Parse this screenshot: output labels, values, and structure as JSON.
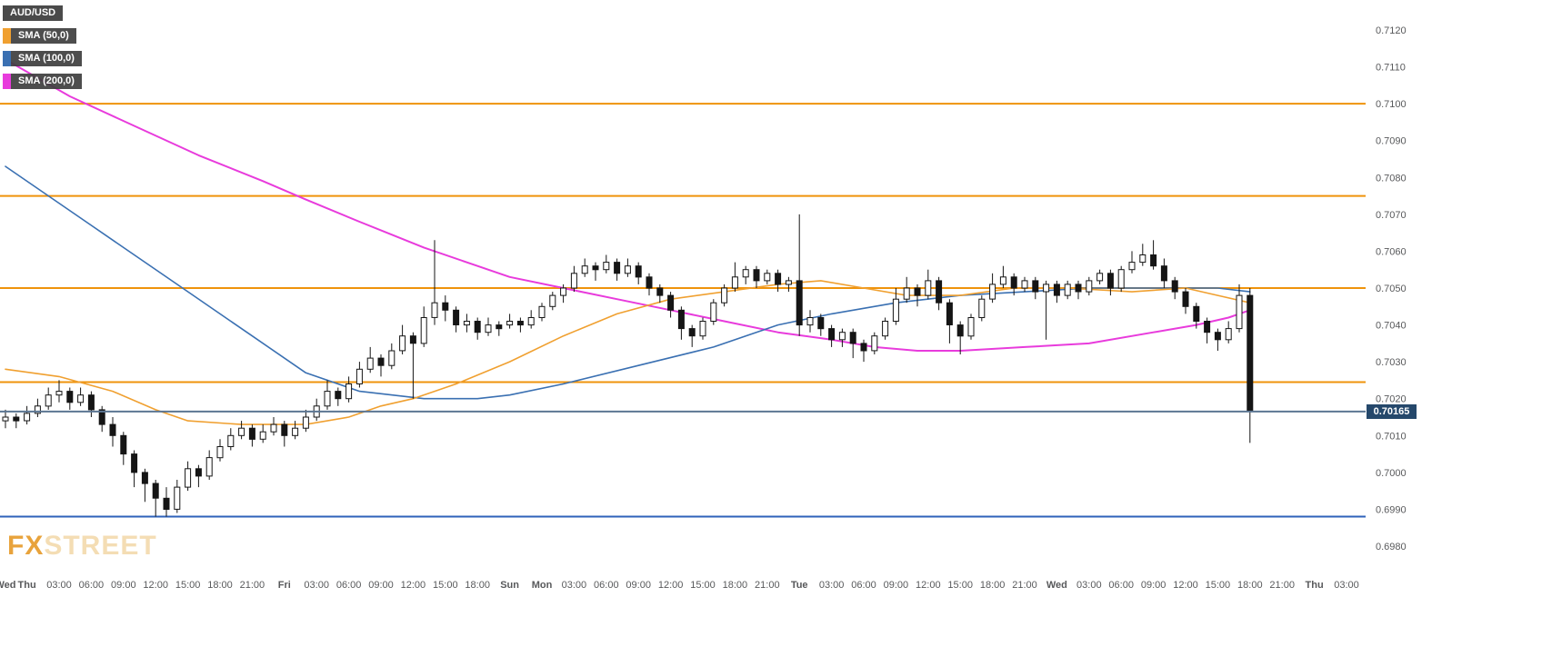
{
  "window": {
    "background": "#ffffff"
  },
  "legend": {
    "symbol": {
      "label": "AUD/USD",
      "bg": "#4a4a4a",
      "text_color": "#ffffff"
    },
    "indicators": [
      {
        "label": "SMA (50,0)",
        "accent": "#f0a030"
      },
      {
        "label": "SMA (100,0)",
        "accent": "#3a70b2"
      },
      {
        "label": "SMA (200,0)",
        "accent": "#e83bdc"
      }
    ]
  },
  "logo": {
    "part1": "FX",
    "part2": "STREET",
    "part1_color": "#e8a33c",
    "part2_color": "#f4ddb4"
  },
  "chart_data": {
    "type": "candlestick",
    "pair": "AUD/USD",
    "interval": "1h",
    "price_encoding": {
      "base": 0.69,
      "scale": 0.0001,
      "note": "encoded value v -> price = base + v*scale (e.g. 115 = 0.7015)"
    },
    "y_axis": {
      "min": 0.698,
      "max": 0.712,
      "tick_step": 0.001,
      "tick_labels": [
        "0.7120",
        "0.7110",
        "0.7100",
        "0.7090",
        "0.7080",
        "0.7070",
        "0.7060",
        "0.7050",
        "0.7040",
        "0.7030",
        "0.7020",
        "0.7010",
        "0.7000",
        "0.6990",
        "0.6980"
      ],
      "label_color": "#58595b"
    },
    "x_axis": {
      "slot_hours": 1,
      "label_color": "#58595b",
      "labels": [
        {
          "text": "Wed",
          "slot": 0,
          "day": true
        },
        {
          "text": "Thu",
          "slot": 2,
          "day": true
        },
        {
          "text": "03:00",
          "slot": 5
        },
        {
          "text": "06:00",
          "slot": 8
        },
        {
          "text": "09:00",
          "slot": 11
        },
        {
          "text": "12:00",
          "slot": 14
        },
        {
          "text": "15:00",
          "slot": 17
        },
        {
          "text": "18:00",
          "slot": 20
        },
        {
          "text": "21:00",
          "slot": 23
        },
        {
          "text": "Fri",
          "slot": 26,
          "day": true
        },
        {
          "text": "03:00",
          "slot": 29
        },
        {
          "text": "06:00",
          "slot": 32
        },
        {
          "text": "09:00",
          "slot": 35
        },
        {
          "text": "12:00",
          "slot": 38
        },
        {
          "text": "15:00",
          "slot": 41
        },
        {
          "text": "18:00",
          "slot": 44
        },
        {
          "text": "Sun",
          "slot": 47,
          "day": true
        },
        {
          "text": "Mon",
          "slot": 50,
          "day": true
        },
        {
          "text": "03:00",
          "slot": 53
        },
        {
          "text": "06:00",
          "slot": 56
        },
        {
          "text": "09:00",
          "slot": 59
        },
        {
          "text": "12:00",
          "slot": 62
        },
        {
          "text": "15:00",
          "slot": 65
        },
        {
          "text": "18:00",
          "slot": 68
        },
        {
          "text": "21:00",
          "slot": 71
        },
        {
          "text": "Tue",
          "slot": 74,
          "day": true
        },
        {
          "text": "03:00",
          "slot": 77
        },
        {
          "text": "06:00",
          "slot": 80
        },
        {
          "text": "09:00",
          "slot": 83
        },
        {
          "text": "12:00",
          "slot": 86
        },
        {
          "text": "15:00",
          "slot": 89
        },
        {
          "text": "18:00",
          "slot": 92
        },
        {
          "text": "21:00",
          "slot": 95
        },
        {
          "text": "Wed",
          "slot": 98,
          "day": true
        },
        {
          "text": "03:00",
          "slot": 101
        },
        {
          "text": "06:00",
          "slot": 104
        },
        {
          "text": "09:00",
          "slot": 107
        },
        {
          "text": "12:00",
          "slot": 110
        },
        {
          "text": "15:00",
          "slot": 113
        },
        {
          "text": "18:00",
          "slot": 116
        },
        {
          "text": "21:00",
          "slot": 119
        },
        {
          "text": "Thu",
          "slot": 122,
          "day": true
        },
        {
          "text": "03:00",
          "slot": 125
        }
      ]
    },
    "horizontal_levels": [
      {
        "price": 0.71,
        "color": "#ef930b",
        "width": 2
      },
      {
        "price": 0.7075,
        "color": "#ef930b",
        "width": 2
      },
      {
        "price": 0.705,
        "color": "#ef930b",
        "width": 2
      },
      {
        "price": 0.70245,
        "color": "#ef930b",
        "width": 2
      },
      {
        "price": 0.6988,
        "color": "#2e62ba",
        "width": 2
      }
    ],
    "current_price": {
      "value": 0.70165,
      "label": "0.70165",
      "line_color": "#5c7693",
      "badge_bg": "#25486b",
      "badge_text_color": "#ffffff"
    },
    "sma": [
      {
        "name": "SMA (50,0)",
        "period": 50,
        "color": "#f0a030",
        "width": 1.6,
        "points": [
          [
            0,
            128
          ],
          [
            5,
            126
          ],
          [
            10,
            122
          ],
          [
            14,
            117
          ],
          [
            17,
            114
          ],
          [
            22,
            113
          ],
          [
            28,
            113
          ],
          [
            32,
            115
          ],
          [
            35,
            118
          ],
          [
            38,
            120
          ],
          [
            42,
            124
          ],
          [
            47,
            130
          ],
          [
            52,
            137
          ],
          [
            57,
            143
          ],
          [
            62,
            147
          ],
          [
            67,
            149
          ],
          [
            72,
            151
          ],
          [
            76,
            152
          ],
          [
            80,
            150
          ],
          [
            84,
            148
          ],
          [
            89,
            148
          ],
          [
            94,
            150
          ],
          [
            99,
            150
          ],
          [
            105,
            149
          ],
          [
            110,
            150
          ],
          [
            113,
            148
          ],
          [
            116,
            146
          ]
        ]
      },
      {
        "name": "SMA (100,0)",
        "period": 100,
        "color": "#3a70b2",
        "width": 1.6,
        "points": [
          [
            0,
            183
          ],
          [
            8,
            167
          ],
          [
            16,
            151
          ],
          [
            23,
            137
          ],
          [
            28,
            127
          ],
          [
            33,
            122
          ],
          [
            39,
            120
          ],
          [
            44,
            120
          ],
          [
            47,
            121
          ],
          [
            52,
            124
          ],
          [
            59,
            129
          ],
          [
            66,
            134
          ],
          [
            72,
            140
          ],
          [
            77,
            143
          ],
          [
            83,
            146
          ],
          [
            89,
            148
          ],
          [
            95,
            149
          ],
          [
            101,
            150
          ],
          [
            107,
            150
          ],
          [
            113,
            150
          ],
          [
            116,
            149
          ]
        ]
      },
      {
        "name": "SMA (200,0)",
        "period": 200,
        "color": "#e83bdc",
        "width": 2,
        "points": [
          [
            0,
            212
          ],
          [
            6,
            202
          ],
          [
            12,
            194
          ],
          [
            18,
            186
          ],
          [
            24,
            179
          ],
          [
            28,
            174
          ],
          [
            33,
            168
          ],
          [
            39,
            161
          ],
          [
            44,
            156
          ],
          [
            47,
            153
          ],
          [
            52,
            150
          ],
          [
            57,
            147
          ],
          [
            62,
            144
          ],
          [
            67,
            141
          ],
          [
            72,
            138
          ],
          [
            77,
            136
          ],
          [
            81,
            134
          ],
          [
            85,
            133
          ],
          [
            89,
            133
          ],
          [
            95,
            134
          ],
          [
            101,
            135
          ],
          [
            107,
            138
          ],
          [
            111,
            140
          ],
          [
            114,
            142
          ],
          [
            116,
            144
          ]
        ]
      }
    ],
    "candles": [
      [
        114,
        117,
        112,
        115
      ],
      [
        115,
        116,
        112,
        114
      ],
      [
        114,
        118,
        113,
        116
      ],
      [
        116,
        120,
        115,
        118
      ],
      [
        118,
        123,
        117,
        121
      ],
      [
        121,
        125,
        119,
        122
      ],
      [
        122,
        123,
        117,
        119
      ],
      [
        119,
        123,
        118,
        121
      ],
      [
        121,
        122,
        115,
        117
      ],
      [
        117,
        118,
        111,
        113
      ],
      [
        113,
        115,
        107,
        110
      ],
      [
        110,
        111,
        102,
        105
      ],
      [
        105,
        106,
        96,
        100
      ],
      [
        100,
        101,
        92,
        97
      ],
      [
        97,
        98,
        88,
        93
      ],
      [
        93,
        96,
        88,
        90
      ],
      [
        90,
        98,
        89,
        96
      ],
      [
        96,
        103,
        95,
        101
      ],
      [
        101,
        102,
        96,
        99
      ],
      [
        99,
        106,
        98,
        104
      ],
      [
        104,
        109,
        103,
        107
      ],
      [
        107,
        112,
        106,
        110
      ],
      [
        110,
        114,
        109,
        112
      ],
      [
        112,
        113,
        107,
        109
      ],
      [
        109,
        113,
        108,
        111
      ],
      [
        111,
        115,
        110,
        113
      ],
      [
        113,
        114,
        107,
        110
      ],
      [
        110,
        114,
        109,
        112
      ],
      [
        112,
        117,
        111,
        115
      ],
      [
        115,
        120,
        114,
        118
      ],
      [
        118,
        125,
        117,
        122
      ],
      [
        122,
        123,
        118,
        120
      ],
      [
        120,
        126,
        119,
        124
      ],
      [
        124,
        130,
        123,
        128
      ],
      [
        128,
        134,
        127,
        131
      ],
      [
        131,
        132,
        126,
        129
      ],
      [
        129,
        135,
        128,
        133
      ],
      [
        133,
        140,
        132,
        137
      ],
      [
        137,
        138,
        120,
        135
      ],
      [
        135,
        145,
        134,
        142
      ],
      [
        142,
        163,
        140,
        146
      ],
      [
        146,
        148,
        141,
        144
      ],
      [
        144,
        145,
        138,
        140
      ],
      [
        140,
        143,
        138,
        141
      ],
      [
        141,
        142,
        136,
        138
      ],
      [
        138,
        142,
        137,
        140
      ],
      [
        140,
        141,
        137,
        139
      ],
      [
        140,
        143,
        139,
        141
      ],
      [
        141,
        142,
        138,
        140
      ],
      [
        140,
        144,
        139,
        142
      ],
      [
        142,
        146,
        141,
        145
      ],
      [
        145,
        149,
        144,
        148
      ],
      [
        148,
        151,
        146,
        150
      ],
      [
        150,
        156,
        149,
        154
      ],
      [
        154,
        158,
        153,
        156
      ],
      [
        156,
        157,
        152,
        155
      ],
      [
        155,
        159,
        154,
        157
      ],
      [
        157,
        158,
        152,
        154
      ],
      [
        154,
        158,
        153,
        156
      ],
      [
        156,
        157,
        151,
        153
      ],
      [
        153,
        154,
        148,
        150
      ],
      [
        150,
        151,
        146,
        148
      ],
      [
        148,
        149,
        142,
        144
      ],
      [
        144,
        145,
        136,
        139
      ],
      [
        139,
        140,
        134,
        137
      ],
      [
        137,
        142,
        136,
        141
      ],
      [
        141,
        147,
        140,
        146
      ],
      [
        146,
        151,
        145,
        150
      ],
      [
        150,
        157,
        149,
        153
      ],
      [
        153,
        156,
        151,
        155
      ],
      [
        155,
        156,
        150,
        152
      ],
      [
        152,
        155,
        151,
        154
      ],
      [
        154,
        155,
        149,
        151
      ],
      [
        151,
        153,
        149,
        152
      ],
      [
        152,
        170,
        137,
        140
      ],
      [
        140,
        144,
        138,
        142
      ],
      [
        142,
        143,
        137,
        139
      ],
      [
        139,
        140,
        134,
        136
      ],
      [
        136,
        139,
        134,
        138
      ],
      [
        138,
        139,
        131,
        135
      ],
      [
        135,
        136,
        130,
        133
      ],
      [
        133,
        138,
        132,
        137
      ],
      [
        137,
        142,
        136,
        141
      ],
      [
        141,
        150,
        140,
        147
      ],
      [
        147,
        153,
        146,
        150
      ],
      [
        150,
        151,
        145,
        148
      ],
      [
        148,
        155,
        147,
        152
      ],
      [
        152,
        153,
        144,
        146
      ],
      [
        146,
        147,
        135,
        140
      ],
      [
        140,
        141,
        132,
        137
      ],
      [
        137,
        143,
        136,
        142
      ],
      [
        142,
        148,
        141,
        147
      ],
      [
        147,
        154,
        146,
        151
      ],
      [
        151,
        156,
        150,
        153
      ],
      [
        153,
        154,
        148,
        150
      ],
      [
        150,
        153,
        149,
        152
      ],
      [
        152,
        153,
        147,
        149
      ],
      [
        149,
        152,
        136,
        151
      ],
      [
        151,
        152,
        146,
        148
      ],
      [
        148,
        152,
        147,
        151
      ],
      [
        151,
        152,
        147,
        149
      ],
      [
        149,
        153,
        148,
        152
      ],
      [
        152,
        155,
        151,
        154
      ],
      [
        154,
        155,
        148,
        150
      ],
      [
        150,
        156,
        149,
        155
      ],
      [
        155,
        160,
        154,
        157
      ],
      [
        157,
        162,
        156,
        159
      ],
      [
        159,
        163,
        155,
        156
      ],
      [
        156,
        158,
        150,
        152
      ],
      [
        152,
        153,
        147,
        149
      ],
      [
        149,
        150,
        143,
        145
      ],
      [
        145,
        146,
        139,
        141
      ],
      [
        141,
        142,
        135,
        138
      ],
      [
        138,
        139,
        133,
        136
      ],
      [
        136,
        141,
        135,
        139
      ],
      [
        139,
        151,
        138,
        148
      ],
      [
        148,
        150,
        108,
        116.5
      ]
    ]
  }
}
